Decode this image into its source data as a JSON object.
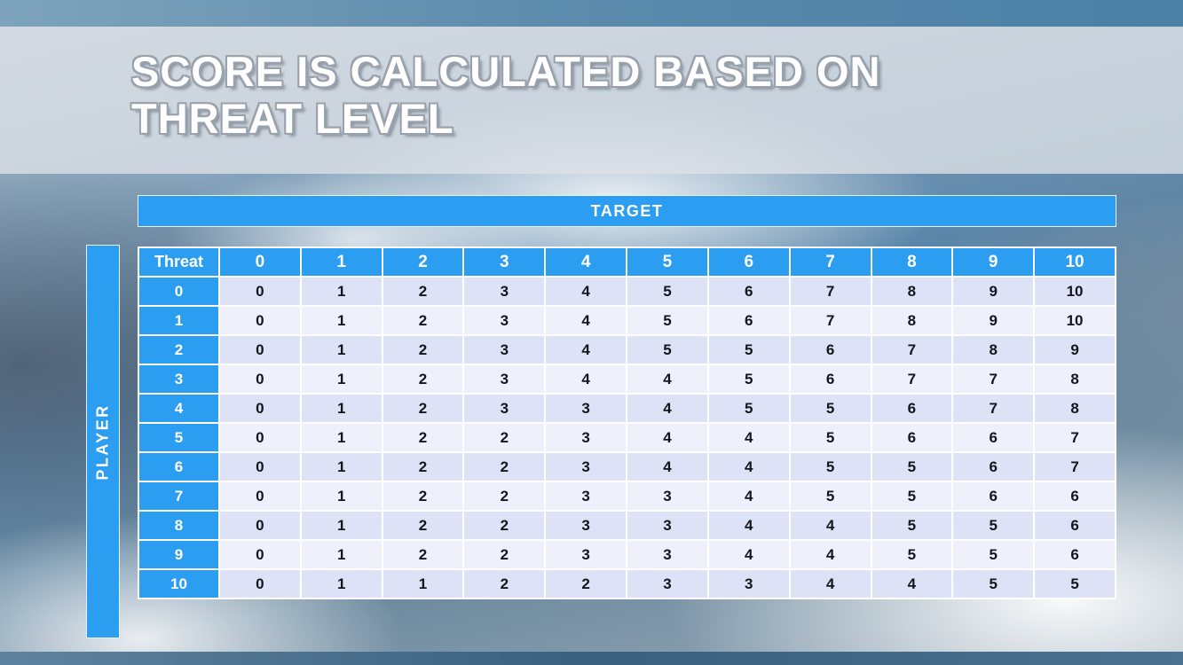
{
  "title": {
    "text": "SCORE IS CALCULATED BASED ON THREAT LEVEL"
  },
  "table": {
    "target_label": "TARGET",
    "player_label": "PLAYER",
    "corner_label": "Threat",
    "column_headers": [
      "0",
      "1",
      "2",
      "3",
      "4",
      "5",
      "6",
      "7",
      "8",
      "9",
      "10"
    ],
    "rows": [
      {
        "threat": "0",
        "values": [
          "0",
          "1",
          "2",
          "3",
          "4",
          "5",
          "6",
          "7",
          "8",
          "9",
          "10"
        ]
      },
      {
        "threat": "1",
        "values": [
          "0",
          "1",
          "2",
          "3",
          "4",
          "5",
          "6",
          "7",
          "8",
          "9",
          "10"
        ]
      },
      {
        "threat": "2",
        "values": [
          "0",
          "1",
          "2",
          "3",
          "4",
          "5",
          "5",
          "6",
          "7",
          "8",
          "9"
        ]
      },
      {
        "threat": "3",
        "values": [
          "0",
          "1",
          "2",
          "3",
          "4",
          "4",
          "5",
          "6",
          "7",
          "7",
          "8"
        ]
      },
      {
        "threat": "4",
        "values": [
          "0",
          "1",
          "2",
          "3",
          "3",
          "4",
          "5",
          "5",
          "6",
          "7",
          "8"
        ]
      },
      {
        "threat": "5",
        "values": [
          "0",
          "1",
          "2",
          "2",
          "3",
          "4",
          "4",
          "5",
          "6",
          "6",
          "7"
        ]
      },
      {
        "threat": "6",
        "values": [
          "0",
          "1",
          "2",
          "2",
          "3",
          "4",
          "4",
          "5",
          "5",
          "6",
          "7"
        ]
      },
      {
        "threat": "7",
        "values": [
          "0",
          "1",
          "2",
          "2",
          "3",
          "3",
          "4",
          "5",
          "5",
          "6",
          "6"
        ]
      },
      {
        "threat": "8",
        "values": [
          "0",
          "1",
          "2",
          "2",
          "3",
          "3",
          "4",
          "4",
          "5",
          "5",
          "6"
        ]
      },
      {
        "threat": "9",
        "values": [
          "0",
          "1",
          "2",
          "2",
          "3",
          "3",
          "4",
          "4",
          "5",
          "5",
          "6"
        ]
      },
      {
        "threat": "10",
        "values": [
          "0",
          "1",
          "1",
          "2",
          "2",
          "3",
          "3",
          "4",
          "4",
          "5",
          "5"
        ]
      }
    ]
  },
  "colors": {
    "header_blue": "#2c9ef2",
    "row_even": "#dde2f6",
    "row_odd": "#eef0fb",
    "cell_text": "#15151e"
  }
}
